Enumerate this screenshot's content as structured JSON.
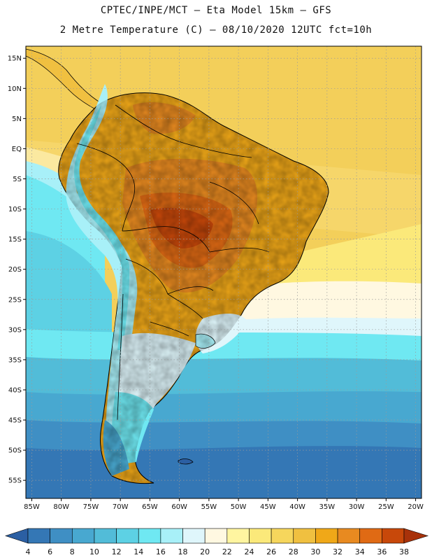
{
  "header": {
    "line1": "CPTEC/INPE/MCT –  Eta Model 15km – GFS",
    "line2": "2 Metre Temperature (C) – 08/10/2020 12UTC fct=10h"
  },
  "map": {
    "lat_labels": [
      {
        "value": 15,
        "label": "15N"
      },
      {
        "value": 10,
        "label": "10N"
      },
      {
        "value": 5,
        "label": "5N"
      },
      {
        "value": 0,
        "label": "EQ"
      },
      {
        "value": -5,
        "label": "5S"
      },
      {
        "value": -10,
        "label": "10S"
      },
      {
        "value": -15,
        "label": "15S"
      },
      {
        "value": -20,
        "label": "20S"
      },
      {
        "value": -25,
        "label": "25S"
      },
      {
        "value": -30,
        "label": "30S"
      },
      {
        "value": -35,
        "label": "35S"
      },
      {
        "value": -40,
        "label": "40S"
      },
      {
        "value": -45,
        "label": "45S"
      },
      {
        "value": -50,
        "label": "50S"
      },
      {
        "value": -55,
        "label": "55S"
      }
    ],
    "lon_labels": [
      {
        "value": -85,
        "label": "85W"
      },
      {
        "value": -80,
        "label": "80W"
      },
      {
        "value": -75,
        "label": "75W"
      },
      {
        "value": -70,
        "label": "70W"
      },
      {
        "value": -65,
        "label": "65W"
      },
      {
        "value": -60,
        "label": "60W"
      },
      {
        "value": -55,
        "label": "55W"
      },
      {
        "value": -50,
        "label": "50W"
      },
      {
        "value": -45,
        "label": "45W"
      },
      {
        "value": -40,
        "label": "40W"
      },
      {
        "value": -35,
        "label": "35W"
      },
      {
        "value": -30,
        "label": "30W"
      },
      {
        "value": -25,
        "label": "25W"
      },
      {
        "value": -20,
        "label": "20W"
      }
    ],
    "lon_range": [
      -86,
      -19
    ],
    "lat_range": [
      -58,
      17
    ]
  },
  "colorbar": {
    "colors": [
      "#2b5fa3",
      "#3477b5",
      "#3f8fc4",
      "#48a8d0",
      "#52bcd8",
      "#5dd1e4",
      "#6fe8f2",
      "#a8f0f8",
      "#dff6fb",
      "#fff8e1",
      "#fff5a0",
      "#fbe97a",
      "#f6d65c",
      "#f0c040",
      "#f0a818",
      "#e88a20",
      "#e06a14",
      "#c8480a",
      "#a8320a"
    ],
    "labels": [
      "4",
      "6",
      "8",
      "10",
      "12",
      "14",
      "16",
      "18",
      "20",
      "22",
      "24",
      "26",
      "28",
      "30",
      "32",
      "34",
      "36",
      "38"
    ]
  }
}
